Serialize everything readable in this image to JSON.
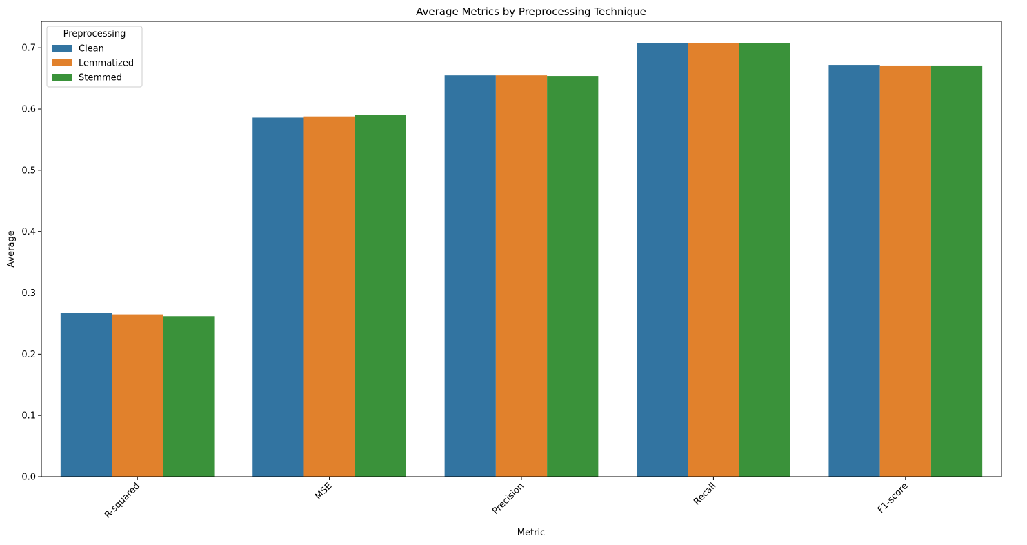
{
  "chart_data": {
    "type": "bar",
    "title": "Average Metrics by Preprocessing Technique",
    "xlabel": "Metric",
    "ylabel": "Average",
    "categories": [
      "R-squared",
      "MSE",
      "Precision",
      "Recall",
      "F1-score"
    ],
    "series": [
      {
        "name": "Clean",
        "color": "#3274a1",
        "values": [
          0.267,
          0.586,
          0.655,
          0.708,
          0.672
        ]
      },
      {
        "name": "Lemmatized",
        "color": "#e1812c",
        "values": [
          0.265,
          0.588,
          0.655,
          0.708,
          0.671
        ]
      },
      {
        "name": "Stemmed",
        "color": "#3a923a",
        "values": [
          0.262,
          0.59,
          0.654,
          0.707,
          0.671
        ]
      }
    ],
    "ylim": [
      0,
      0.743
    ],
    "yticks": [
      0.0,
      0.1,
      0.2,
      0.3,
      0.4,
      0.5,
      0.6,
      0.7
    ],
    "ytick_labels": [
      "0.0",
      "0.1",
      "0.2",
      "0.3",
      "0.4",
      "0.5",
      "0.6",
      "0.7"
    ],
    "legend": {
      "title": "Preprocessing",
      "position": "top-left"
    },
    "grid": false
  }
}
